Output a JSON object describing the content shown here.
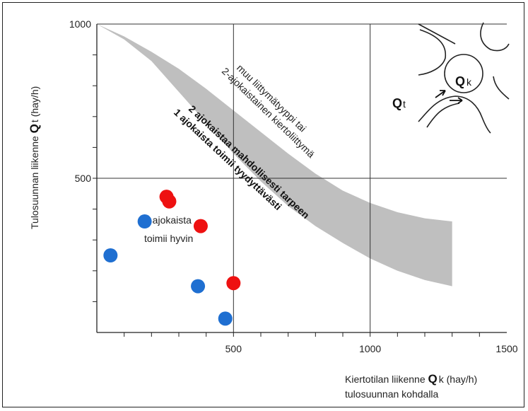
{
  "chart_data": {
    "type": "scatter",
    "xlim": [
      0,
      1500
    ],
    "ylim": [
      0,
      1000
    ],
    "x_ticks": [
      0,
      500,
      1000,
      1500
    ],
    "y_ticks": [
      0,
      500,
      1000
    ],
    "x_tick_labels": [
      "500",
      "1000",
      "1500"
    ],
    "y_tick_labels": [
      "500",
      "1000"
    ],
    "grid_major": [
      500,
      1000
    ],
    "xlabel": {
      "prefix": "Kiertotilan liikenne ",
      "letter": "Q",
      "sub": "k",
      "suffix": "  (hay/h)",
      "line2": "tulosuunnan kohdalla"
    },
    "ylabel": {
      "prefix": "Tulosuunnan liikenne ",
      "letter": "Q",
      "sub": "t",
      "suffix": "  (hay/h)"
    },
    "band": {
      "upper": [
        [
          0,
          1000
        ],
        [
          100,
          960
        ],
        [
          200,
          910
        ],
        [
          300,
          855
        ],
        [
          400,
          790
        ],
        [
          500,
          720
        ],
        [
          600,
          650
        ],
        [
          700,
          580
        ],
        [
          800,
          515
        ],
        [
          900,
          460
        ],
        [
          1000,
          420
        ],
        [
          1100,
          390
        ],
        [
          1200,
          370
        ],
        [
          1300,
          360
        ]
      ],
      "lower": [
        [
          0,
          1000
        ],
        [
          100,
          950
        ],
        [
          200,
          880
        ],
        [
          300,
          780
        ],
        [
          400,
          680
        ],
        [
          500,
          580
        ],
        [
          600,
          490
        ],
        [
          700,
          410
        ],
        [
          800,
          345
        ],
        [
          900,
          290
        ],
        [
          1000,
          240
        ],
        [
          1100,
          200
        ],
        [
          1200,
          170
        ],
        [
          1300,
          150
        ]
      ],
      "color": "#b4b4b4"
    },
    "annotations": {
      "upper": [
        "muu liittymätyyppi tai",
        "2-ajokaistainen kiertoliittymä"
      ],
      "lower": [
        "2 ajokaistaa mahdollisesti tarpeen",
        "1 ajokaista toimii tyydyttävästi"
      ],
      "region": [
        "1 ajokaista",
        "toimii hyvin"
      ]
    },
    "inset": {
      "t_letter": "Q",
      "t_sub": "t",
      "k_letter": "Q",
      "k_sub": "k"
    },
    "series": [
      {
        "color": "#1f6fd1",
        "points": [
          [
            50,
            250
          ],
          [
            175,
            360
          ],
          [
            370,
            150
          ],
          [
            470,
            45
          ]
        ]
      },
      {
        "color": "#ee1111",
        "points": [
          [
            255,
            440
          ],
          [
            265,
            425
          ],
          [
            380,
            345
          ],
          [
            500,
            160
          ]
        ]
      }
    ]
  }
}
